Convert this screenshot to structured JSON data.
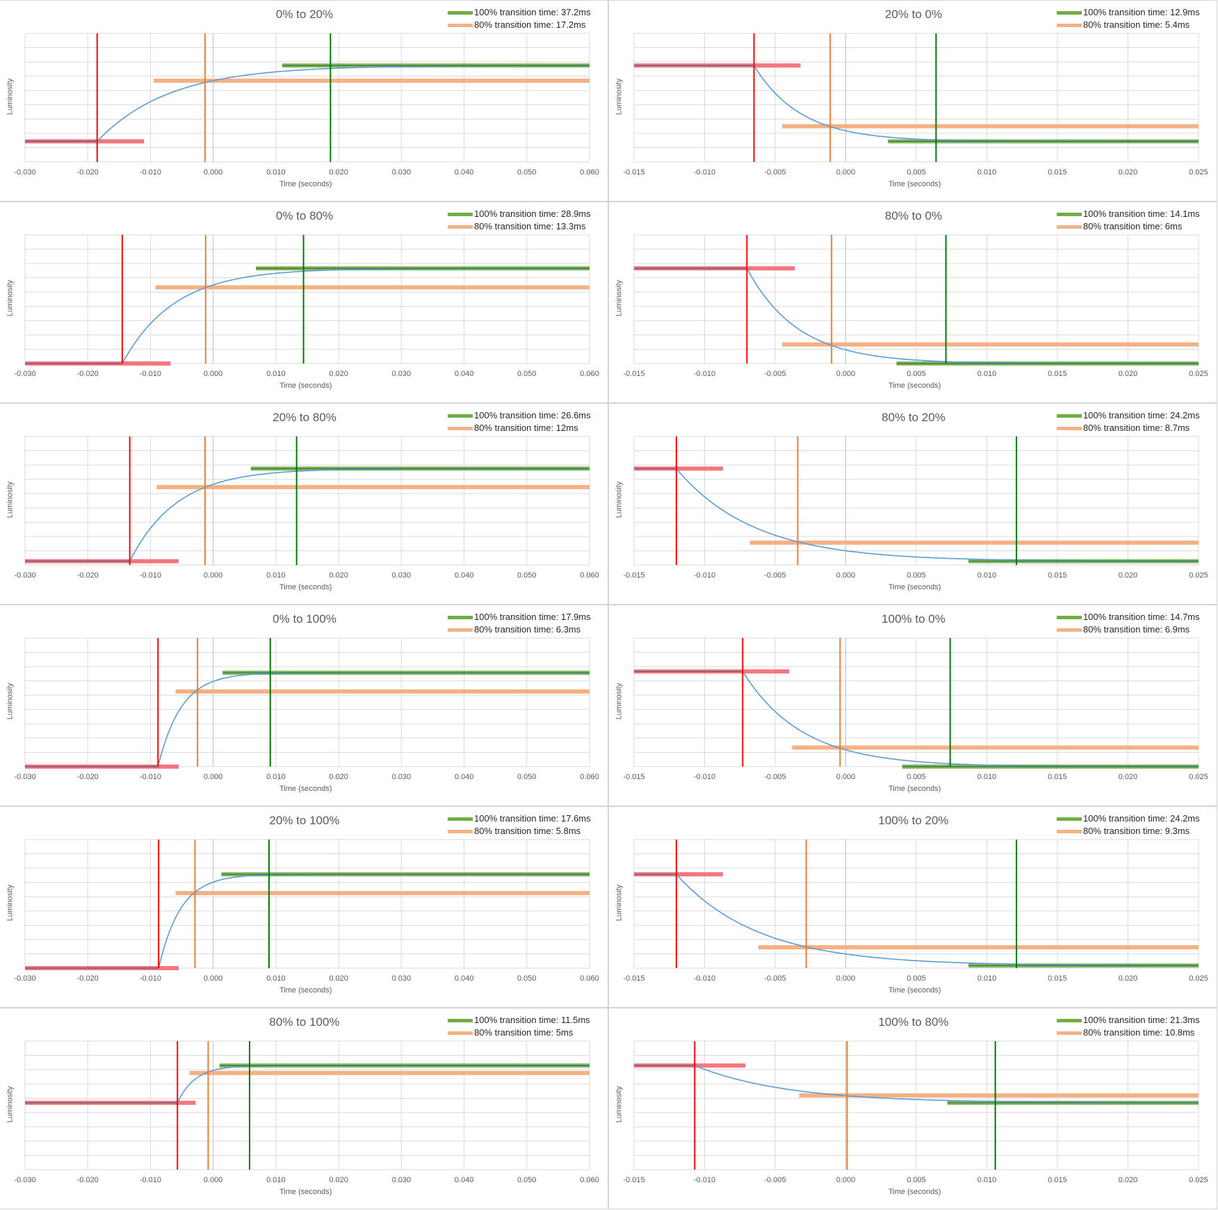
{
  "chart_data": [
    {
      "type": "line",
      "title": "0% to 20%",
      "xlabel": "Time (seconds)",
      "ylabel": "Luminosity",
      "xlim": [
        -0.03,
        0.06
      ],
      "xticks": [
        "-0.030",
        "-0.020",
        "-0.010",
        "0.000",
        "0.010",
        "0.020",
        "0.030",
        "0.040",
        "0.050",
        "0.060"
      ],
      "legend": [
        {
          "label": "100% transition time: 37.2ms",
          "color": "#70AD47"
        },
        {
          "label": "80% transition time: 17.2ms",
          "color": "#F4B183"
        }
      ],
      "direction": "rise",
      "low": 0.16,
      "high": 0.75,
      "t_start": -0.0185,
      "tau": 0.0115,
      "mark_start": -0.0185,
      "mark_80": -0.0013,
      "mark_100": 0.0187,
      "seg_start": [
        -0.03,
        -0.011
      ],
      "seg_80": [
        -0.0095,
        0.06
      ],
      "seg_100": [
        0.011,
        0.06
      ]
    },
    {
      "type": "line",
      "title": "20% to 0%",
      "xlabel": "Time (seconds)",
      "ylabel": "Luminosity",
      "xlim": [
        -0.015,
        0.025
      ],
      "xticks": [
        "-0.015",
        "-0.010",
        "-0.005",
        "0.000",
        "0.005",
        "0.010",
        "0.015",
        "0.020",
        "0.025"
      ],
      "legend": [
        {
          "label": "100% transition time: 12.9ms",
          "color": "#70AD47"
        },
        {
          "label": "80% transition time: 5.4ms",
          "color": "#F4B183"
        }
      ],
      "direction": "fall",
      "low": 0.16,
      "high": 0.75,
      "t_start": -0.0065,
      "tau": 0.0033,
      "mark_start": -0.0065,
      "mark_80": -0.0011,
      "mark_100": 0.0064,
      "seg_start": [
        -0.015,
        -0.0032
      ],
      "seg_80": [
        -0.0045,
        0.025
      ],
      "seg_100": [
        0.003,
        0.025
      ]
    },
    {
      "type": "line",
      "title": "0% to 80%",
      "xlabel": "Time (seconds)",
      "ylabel": "Luminosity",
      "xlim": [
        -0.03,
        0.06
      ],
      "xticks": [
        "-0.030",
        "-0.020",
        "-0.010",
        "0.000",
        "0.010",
        "0.020",
        "0.030",
        "0.040",
        "0.050",
        "0.060"
      ],
      "legend": [
        {
          "label": "100% transition time: 28.9ms",
          "color": "#70AD47"
        },
        {
          "label": "80% transition time: 13.3ms",
          "color": "#F4B183"
        }
      ],
      "direction": "rise",
      "low": 0.0,
      "high": 0.74,
      "t_start": -0.0145,
      "tau": 0.0083,
      "mark_start": -0.0145,
      "mark_80": -0.0012,
      "mark_100": 0.0144,
      "seg_start": [
        -0.03,
        -0.0068
      ],
      "seg_80": [
        -0.0092,
        0.06
      ],
      "seg_100": [
        0.0068,
        0.06
      ]
    },
    {
      "type": "line",
      "title": "80% to 0%",
      "xlabel": "Time (seconds)",
      "ylabel": "Luminosity",
      "xlim": [
        -0.015,
        0.025
      ],
      "xticks": [
        "-0.015",
        "-0.010",
        "-0.005",
        "0.000",
        "0.005",
        "0.010",
        "0.015",
        "0.020",
        "0.025"
      ],
      "legend": [
        {
          "label": "100% transition time: 14.1ms",
          "color": "#70AD47"
        },
        {
          "label": "80% transition time: 6ms",
          "color": "#F4B183"
        }
      ],
      "direction": "fall",
      "low": 0.0,
      "high": 0.74,
      "t_start": -0.007,
      "tau": 0.0036,
      "mark_start": -0.007,
      "mark_80": -0.001,
      "mark_100": 0.0071,
      "seg_start": [
        -0.015,
        -0.0036
      ],
      "seg_80": [
        -0.0045,
        0.025
      ],
      "seg_100": [
        0.0036,
        0.025
      ]
    },
    {
      "type": "line",
      "title": "20% to 80%",
      "xlabel": "Time (seconds)",
      "ylabel": "Luminosity",
      "xlim": [
        -0.03,
        0.06
      ],
      "xticks": [
        "-0.030",
        "-0.020",
        "-0.010",
        "0.000",
        "0.010",
        "0.020",
        "0.030",
        "0.040",
        "0.050",
        "0.060"
      ],
      "legend": [
        {
          "label": "100% transition time: 26.6ms",
          "color": "#70AD47"
        },
        {
          "label": "80% transition time: 12ms",
          "color": "#F4B183"
        }
      ],
      "direction": "rise",
      "low": 0.03,
      "high": 0.75,
      "t_start": -0.0133,
      "tau": 0.0075,
      "mark_start": -0.0133,
      "mark_80": -0.0013,
      "mark_100": 0.0133,
      "seg_start": [
        -0.03,
        -0.0055
      ],
      "seg_80": [
        -0.009,
        0.06
      ],
      "seg_100": [
        0.006,
        0.06
      ]
    },
    {
      "type": "line",
      "title": "80% to 20%",
      "xlabel": "Time (seconds)",
      "ylabel": "Luminosity",
      "xlim": [
        -0.015,
        0.025
      ],
      "xticks": [
        "-0.015",
        "-0.010",
        "-0.005",
        "0.000",
        "0.005",
        "0.010",
        "0.015",
        "0.020",
        "0.025"
      ],
      "legend": [
        {
          "label": "100% transition time: 24.2ms",
          "color": "#70AD47"
        },
        {
          "label": "80% transition time: 8.7ms",
          "color": "#F4B183"
        }
      ],
      "direction": "fall",
      "low": 0.03,
      "high": 0.75,
      "t_start": -0.012,
      "tau": 0.0055,
      "mark_start": -0.012,
      "mark_80": -0.0034,
      "mark_100": 0.0121,
      "seg_start": [
        -0.015,
        -0.0087
      ],
      "seg_80": [
        -0.0068,
        0.025
      ],
      "seg_100": [
        0.0087,
        0.025
      ]
    },
    {
      "type": "line",
      "title": "0% to 100%",
      "xlabel": "Time (seconds)",
      "ylabel": "Luminosity",
      "xlim": [
        -0.03,
        0.06
      ],
      "xticks": [
        "-0.030",
        "-0.020",
        "-0.010",
        "0.000",
        "0.010",
        "0.020",
        "0.030",
        "0.040",
        "0.050",
        "0.060"
      ],
      "legend": [
        {
          "label": "100% transition time: 17.9ms",
          "color": "#70AD47"
        },
        {
          "label": "80% transition time: 6.3ms",
          "color": "#F4B183"
        }
      ],
      "direction": "rise",
      "low": 0.0,
      "high": 0.73,
      "t_start": -0.0088,
      "tau": 0.0037,
      "mark_start": -0.0088,
      "mark_80": -0.0025,
      "mark_100": 0.0091,
      "seg_start": [
        -0.03,
        -0.0055
      ],
      "seg_80": [
        -0.006,
        0.06
      ],
      "seg_100": [
        0.0015,
        0.06
      ]
    },
    {
      "type": "line",
      "title": "100% to 0%",
      "xlabel": "Time (seconds)",
      "ylabel": "Luminosity",
      "xlim": [
        -0.015,
        0.025
      ],
      "xticks": [
        "-0.015",
        "-0.010",
        "-0.005",
        "0.000",
        "0.005",
        "0.010",
        "0.015",
        "0.020",
        "0.025"
      ],
      "legend": [
        {
          "label": "100% transition time: 14.7ms",
          "color": "#70AD47"
        },
        {
          "label": "80% transition time: 6.9ms",
          "color": "#F4B183"
        }
      ],
      "direction": "fall",
      "low": 0.0,
      "high": 0.74,
      "t_start": -0.0073,
      "tau": 0.0042,
      "mark_start": -0.0073,
      "mark_80": -0.0004,
      "mark_100": 0.0074,
      "seg_start": [
        -0.015,
        -0.004
      ],
      "seg_80": [
        -0.0038,
        0.025
      ],
      "seg_100": [
        0.004,
        0.025
      ]
    },
    {
      "type": "line",
      "title": "20% to 100%",
      "xlabel": "Time (seconds)",
      "ylabel": "Luminosity",
      "xlim": [
        -0.03,
        0.06
      ],
      "xticks": [
        "-0.030",
        "-0.020",
        "-0.010",
        "0.000",
        "0.010",
        "0.020",
        "0.030",
        "0.040",
        "0.050",
        "0.060"
      ],
      "legend": [
        {
          "label": "100% transition time: 17.6ms",
          "color": "#70AD47"
        },
        {
          "label": "80% transition time: 5.8ms",
          "color": "#F4B183"
        }
      ],
      "direction": "rise",
      "low": 0.0,
      "high": 0.73,
      "t_start": -0.0087,
      "tau": 0.0035,
      "mark_start": -0.0087,
      "mark_80": -0.0029,
      "mark_100": 0.0089,
      "seg_start": [
        -0.03,
        -0.0055
      ],
      "seg_80": [
        -0.006,
        0.06
      ],
      "seg_100": [
        0.0013,
        0.06
      ]
    },
    {
      "type": "line",
      "title": "100% to 20%",
      "xlabel": "Time (seconds)",
      "ylabel": "Luminosity",
      "xlim": [
        -0.015,
        0.025
      ],
      "xticks": [
        "-0.015",
        "-0.010",
        "-0.005",
        "0.000",
        "0.005",
        "0.010",
        "0.015",
        "0.020",
        "0.025"
      ],
      "legend": [
        {
          "label": "100% transition time: 24.2ms",
          "color": "#70AD47"
        },
        {
          "label": "80% transition time: 9.3ms",
          "color": "#F4B183"
        }
      ],
      "direction": "fall",
      "low": 0.02,
      "high": 0.73,
      "t_start": -0.012,
      "tau": 0.0058,
      "mark_start": -0.012,
      "mark_80": -0.0028,
      "mark_100": 0.0121,
      "seg_start": [
        -0.015,
        -0.0087
      ],
      "seg_80": [
        -0.0062,
        0.025
      ],
      "seg_100": [
        0.0087,
        0.025
      ]
    },
    {
      "type": "line",
      "title": "80% to 100%",
      "xlabel": "Time (seconds)",
      "ylabel": "Luminosity",
      "xlim": [
        -0.03,
        0.06
      ],
      "xticks": [
        "-0.030",
        "-0.020",
        "-0.010",
        "0.000",
        "0.010",
        "0.020",
        "0.030",
        "0.040",
        "0.050",
        "0.060"
      ],
      "legend": [
        {
          "label": "100% transition time: 11.5ms",
          "color": "#70AD47"
        },
        {
          "label": "80% transition time: 5ms",
          "color": "#F4B183"
        }
      ],
      "direction": "rise",
      "low": 0.52,
      "high": 0.81,
      "t_start": -0.0057,
      "tau": 0.0028,
      "mark_start": -0.0057,
      "mark_80": -0.0008,
      "mark_100": 0.0058,
      "seg_start": [
        -0.03,
        -0.0028
      ],
      "seg_80": [
        -0.0038,
        0.06
      ],
      "seg_100": [
        0.001,
        0.06
      ]
    },
    {
      "type": "line",
      "title": "100% to 80%",
      "xlabel": "Time (seconds)",
      "ylabel": "Luminosity",
      "xlim": [
        -0.015,
        0.025
      ],
      "xticks": [
        "-0.015",
        "-0.010",
        "-0.005",
        "0.000",
        "0.005",
        "0.010",
        "0.015",
        "0.020",
        "0.025"
      ],
      "legend": [
        {
          "label": "100% transition time: 21.3ms",
          "color": "#70AD47"
        },
        {
          "label": "80% transition time: 10.8ms",
          "color": "#F4B183"
        }
      ],
      "direction": "fall",
      "low": 0.52,
      "high": 0.81,
      "t_start": -0.0107,
      "tau": 0.0065,
      "mark_start": -0.0107,
      "mark_80": 0.0001,
      "mark_100": 0.0106,
      "seg_start": [
        -0.015,
        -0.0071
      ],
      "seg_80": [
        -0.0033,
        0.025
      ],
      "seg_100": [
        0.0072,
        0.025
      ]
    }
  ]
}
